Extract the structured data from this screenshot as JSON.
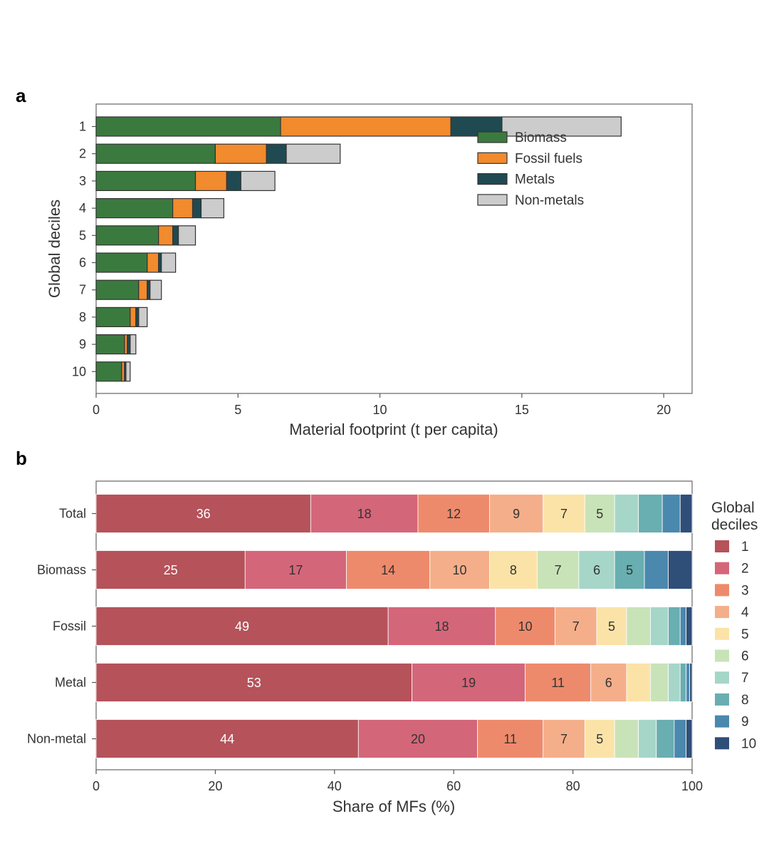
{
  "chart_data": [
    {
      "panel": "a",
      "type": "bar",
      "orientation": "horizontal",
      "stacked": true,
      "xlabel": "Material footprint (t per capita)",
      "ylabel": "Global deciles",
      "xlim": [
        0,
        21
      ],
      "xticks": [
        "0",
        "5",
        "10",
        "15",
        "20"
      ],
      "categories": [
        "1",
        "2",
        "3",
        "4",
        "5",
        "6",
        "7",
        "8",
        "9",
        "10"
      ],
      "series": [
        {
          "name": "Biomass",
          "color": "#3b7a3f",
          "values": [
            6.5,
            4.2,
            3.5,
            2.7,
            2.2,
            1.8,
            1.5,
            1.2,
            1.0,
            0.9
          ]
        },
        {
          "name": "Fossil fuels",
          "color": "#f28a2e",
          "values": [
            6.0,
            1.8,
            1.1,
            0.7,
            0.5,
            0.4,
            0.3,
            0.2,
            0.1,
            0.1
          ]
        },
        {
          "name": "Metals",
          "color": "#1f4a52",
          "values": [
            1.8,
            0.7,
            0.5,
            0.3,
            0.2,
            0.1,
            0.1,
            0.1,
            0.1,
            0.05
          ]
        },
        {
          "name": "Non-metals",
          "color": "#cccccc",
          "values": [
            4.2,
            1.9,
            1.2,
            0.8,
            0.6,
            0.5,
            0.4,
            0.3,
            0.2,
            0.15
          ]
        }
      ],
      "legend_position": "top-right"
    },
    {
      "panel": "b",
      "type": "bar",
      "orientation": "horizontal",
      "stacked": true,
      "xlabel": "Share of MFs (%)",
      "xlim": [
        0,
        100
      ],
      "xticks": [
        "0",
        "20",
        "40",
        "60",
        "80",
        "100"
      ],
      "categories": [
        "Total",
        "Biomass",
        "Fossil",
        "Metal",
        "Non-metal"
      ],
      "legend_title": [
        "Global",
        "deciles"
      ],
      "legend_position": "right",
      "series": [
        {
          "name": "1",
          "color": "#b5525a",
          "values": [
            36,
            25,
            49,
            53,
            44
          ]
        },
        {
          "name": "2",
          "color": "#d4667a",
          "values": [
            18,
            17,
            18,
            19,
            20
          ]
        },
        {
          "name": "3",
          "color": "#ee8a6c",
          "values": [
            12,
            14,
            10,
            11,
            11
          ]
        },
        {
          "name": "4",
          "color": "#f5ae8a",
          "values": [
            9,
            10,
            7,
            6,
            7
          ]
        },
        {
          "name": "5",
          "color": "#fbe3a8",
          "values": [
            7,
            8,
            5,
            4,
            5
          ]
        },
        {
          "name": "6",
          "color": "#c9e3b8",
          "values": [
            5,
            7,
            4,
            3,
            4
          ]
        },
        {
          "name": "7",
          "color": "#a6d6c8",
          "values": [
            4,
            6,
            3,
            2,
            3
          ]
        },
        {
          "name": "8",
          "color": "#69aeb0",
          "values": [
            4,
            5,
            2,
            1,
            3
          ]
        },
        {
          "name": "9",
          "color": "#4a88ae",
          "values": [
            3,
            4,
            1,
            0.6,
            2
          ]
        },
        {
          "name": "10",
          "color": "#2f4f79",
          "values": [
            2,
            4,
            1,
            0.4,
            1
          ]
        }
      ],
      "labels": [
        [
          "36",
          "18",
          "12",
          "9",
          "7",
          "5",
          "",
          "",
          "",
          ""
        ],
        [
          "25",
          "17",
          "14",
          "10",
          "8",
          "7",
          "6",
          "5",
          "",
          ""
        ],
        [
          "49",
          "18",
          "10",
          "7",
          "5",
          "",
          "",
          "",
          "",
          ""
        ],
        [
          "53",
          "19",
          "11",
          "6",
          "",
          "",
          "",
          "",
          "",
          ""
        ],
        [
          "44",
          "20",
          "11",
          "7",
          "5",
          "",
          "",
          "",
          "",
          ""
        ]
      ],
      "label_colors": [
        "#ffffff",
        "#333333",
        "#333333",
        "#333333",
        "#333333",
        "#333333",
        "#333333",
        "#333333",
        "#333333",
        "#333333"
      ]
    }
  ],
  "panel_labels": {
    "a": "a",
    "b": "b"
  }
}
